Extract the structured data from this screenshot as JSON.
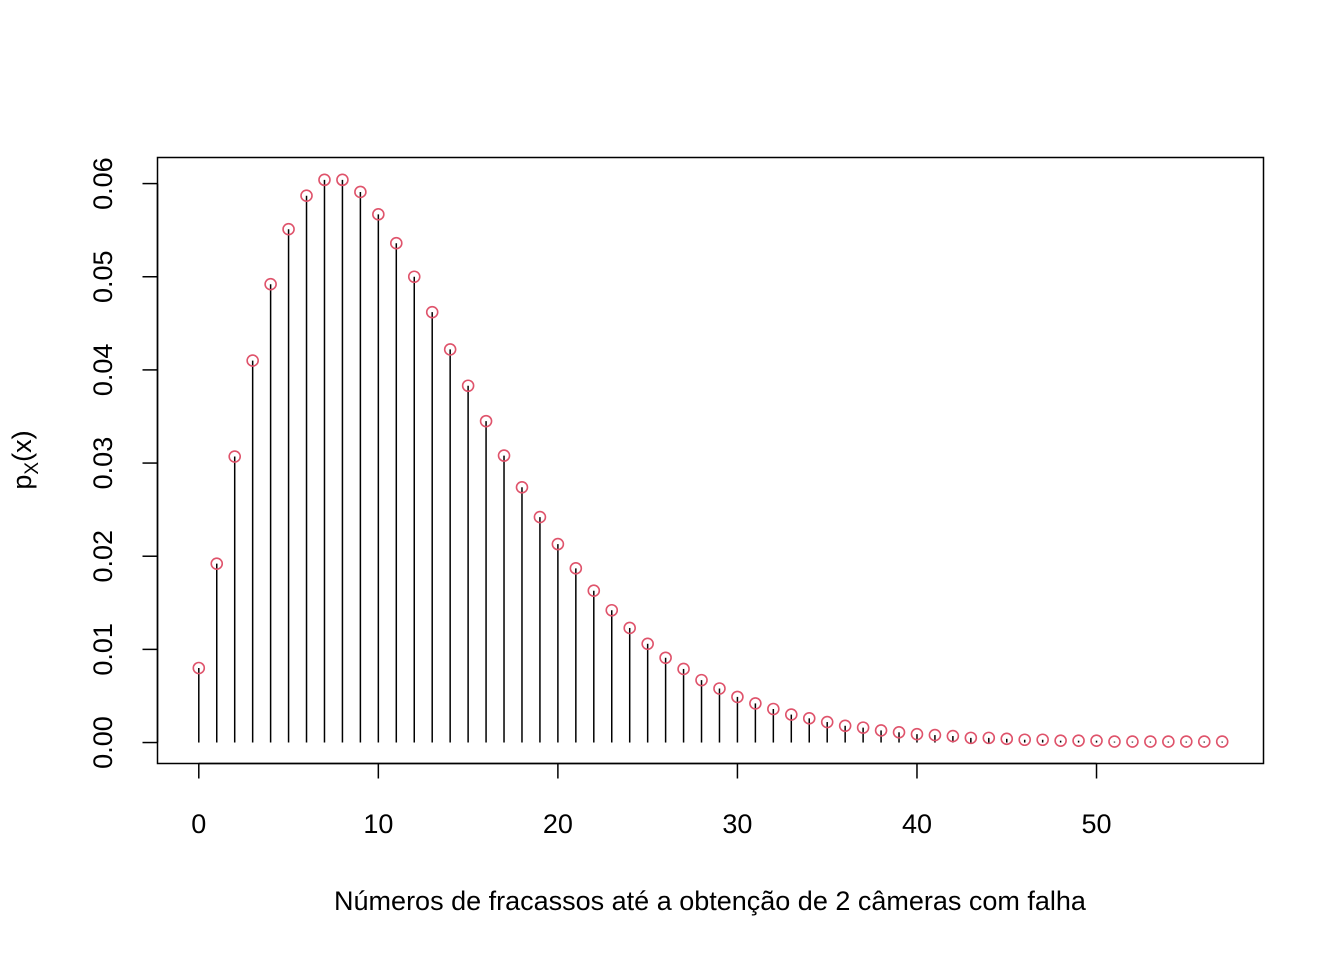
{
  "chart_data": {
    "type": "scatter",
    "style": "probability-mass-stem",
    "xlabel": "Números de fracassos até a obtenção de 2 câmeras com falha",
    "ylabel_main": "p",
    "ylabel_sub": "X",
    "ylabel_tail": "(x)",
    "xlim": [
      -2.3,
      59.3
    ],
    "ylim": [
      -0.00225,
      0.0628
    ],
    "x_ticks": [
      0,
      10,
      20,
      30,
      40,
      50
    ],
    "x_tick_labels": [
      "0",
      "10",
      "20",
      "30",
      "40",
      "50"
    ],
    "y_ticks": [
      0.0,
      0.01,
      0.02,
      0.03,
      0.04,
      0.05,
      0.06
    ],
    "y_tick_labels": [
      "0.00",
      "0.01",
      "0.02",
      "0.03",
      "0.04",
      "0.05",
      "0.06"
    ],
    "grid": false,
    "legend": "none",
    "colors": {
      "stem": "#000000",
      "point": "#DF536B",
      "frame": "#000000"
    },
    "x": [
      0,
      1,
      2,
      3,
      4,
      5,
      6,
      7,
      8,
      9,
      10,
      11,
      12,
      13,
      14,
      15,
      16,
      17,
      18,
      19,
      20,
      21,
      22,
      23,
      24,
      25,
      26,
      27,
      28,
      29,
      30,
      31,
      32,
      33,
      34,
      35,
      36,
      37,
      38,
      39,
      40,
      41,
      42,
      43,
      44,
      45,
      46,
      47,
      48,
      49,
      50,
      51,
      52,
      53,
      54,
      55,
      56,
      57
    ],
    "y": [
      0.008,
      0.0192,
      0.0307,
      0.041,
      0.0492,
      0.0551,
      0.0587,
      0.0604,
      0.0604,
      0.0591,
      0.0567,
      0.0536,
      0.05,
      0.0462,
      0.0422,
      0.0383,
      0.0345,
      0.0308,
      0.0274,
      0.0242,
      0.0213,
      0.0187,
      0.0163,
      0.0142,
      0.0123,
      0.0106,
      0.0091,
      0.0079,
      0.0067,
      0.0058,
      0.0049,
      0.0042,
      0.0036,
      0.003,
      0.0026,
      0.0022,
      0.0018,
      0.0016,
      0.0013,
      0.0011,
      0.0009,
      0.0008,
      0.0007,
      0.0005,
      0.0005,
      0.0004,
      0.0003,
      0.0003,
      0.0002,
      0.0002,
      0.0002,
      0.0001,
      0.0001,
      0.0001,
      0.0001,
      0.0001,
      0.0001,
      0.0001
    ]
  }
}
